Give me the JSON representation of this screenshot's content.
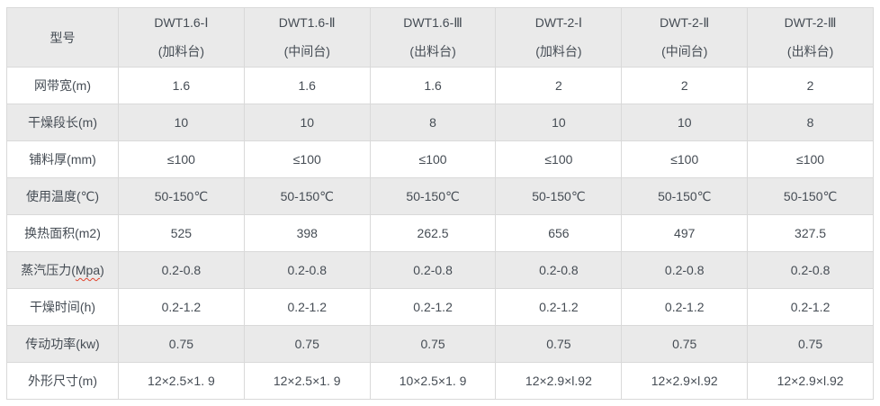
{
  "colors": {
    "header_bg": "#eaeaea",
    "stripe_bg": "#eaeaea",
    "row_bg": "#ffffff",
    "border": "#d9d9d9",
    "text": "#454c54",
    "spellcheck_underline": "#e0442e"
  },
  "table": {
    "header": {
      "model_label": "型号",
      "columns": [
        {
          "model": "DWT1.6-Ⅰ",
          "station": "(加料台)"
        },
        {
          "model": "DWT1.6-Ⅱ",
          "station": "(中间台)"
        },
        {
          "model": "DWT1.6-Ⅲ",
          "station": "(出料台)"
        },
        {
          "model": "DWT-2-Ⅰ",
          "station": "(加料台)"
        },
        {
          "model": "DWT-2-Ⅱ",
          "station": "(中间台)"
        },
        {
          "model": "DWT-2-Ⅲ",
          "station": "(出料台)"
        }
      ]
    },
    "rows": [
      {
        "label": "网带宽(m)",
        "values": [
          "1.6",
          "1.6",
          "1.6",
          "2",
          "2",
          "2"
        ]
      },
      {
        "label": "干燥段长(m)",
        "values": [
          "10",
          "10",
          "8",
          "10",
          "10",
          "8"
        ]
      },
      {
        "label": "铺料厚(mm)",
        "values": [
          "≤100",
          "≤100",
          "≤100",
          "≤100",
          "≤100",
          "≤100"
        ]
      },
      {
        "label": "使用温度(℃)",
        "values": [
          "50-150℃",
          "50-150℃",
          "50-150℃",
          "50-150℃",
          "50-150℃",
          "50-150℃"
        ]
      },
      {
        "label": "换热面积(m2)",
        "values": [
          "525",
          "398",
          "262.5",
          "656",
          "497",
          "327.5"
        ]
      },
      {
        "label": "蒸汽压力(Mpa)",
        "label_pre": "蒸汽压力(",
        "label_word": "Mpa",
        "label_post": ")",
        "values": [
          "0.2-0.8",
          "0.2-0.8",
          "0.2-0.8",
          "0.2-0.8",
          "0.2-0.8",
          "0.2-0.8"
        ]
      },
      {
        "label": "干燥时间(h)",
        "values": [
          "0.2-1.2",
          "0.2-1.2",
          "0.2-1.2",
          "0.2-1.2",
          "0.2-1.2",
          "0.2-1.2"
        ]
      },
      {
        "label": "传动功率(kw)",
        "values": [
          "0.75",
          "0.75",
          "0.75",
          "0.75",
          "0.75",
          "0.75"
        ]
      },
      {
        "label": "外形尺寸(m)",
        "values": [
          "12×2.5×1. 9",
          "12×2.5×1. 9",
          "10×2.5×1. 9",
          "12×2.9×l.92",
          "12×2.9×l.92",
          "12×2.9×l.92"
        ]
      }
    ]
  }
}
